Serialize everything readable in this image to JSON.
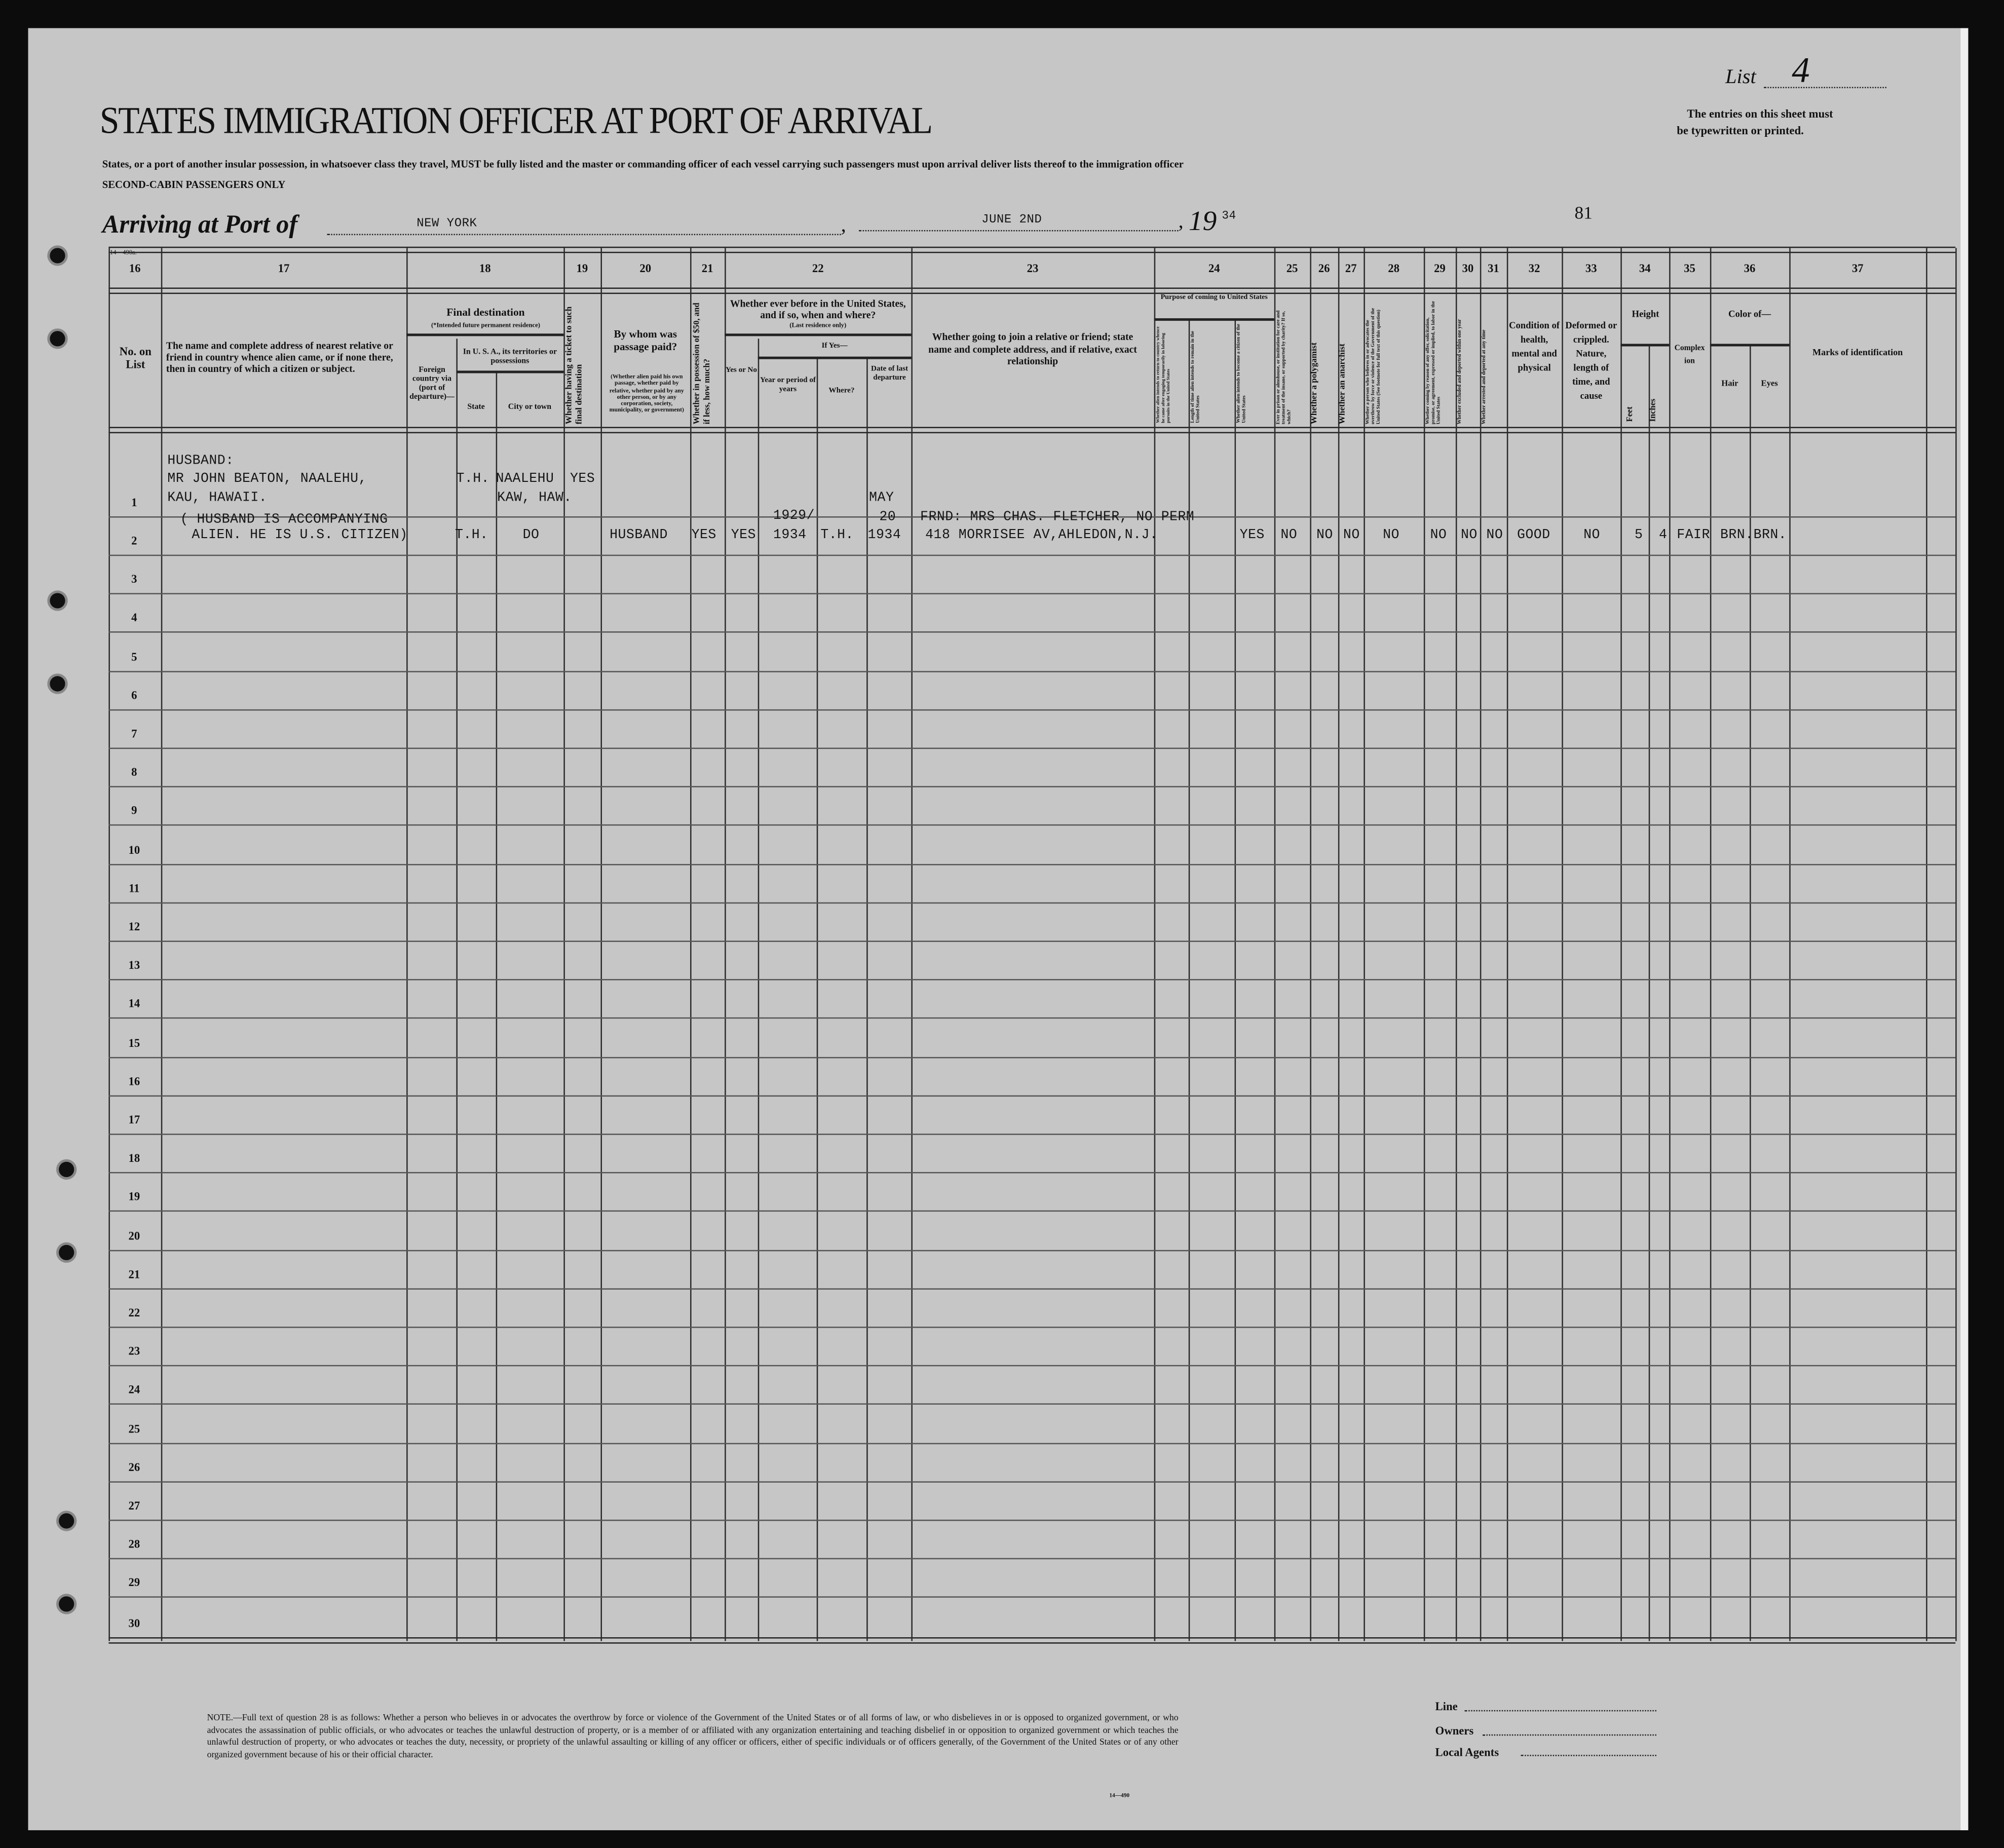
{
  "header": {
    "form_code": "14—490a.",
    "title": "STATES IMMIGRATION OFFICER AT PORT OF ARRIVAL",
    "instruction": "States, or a port of another insular possession, in whatsoever class they travel, MUST be fully listed and the master or commanding officer of each vessel carrying such passengers must upon arrival deliver lists thereof to the immigration officer",
    "class_line": "SECOND-CABIN PASSENGERS ONLY",
    "list_label": "List",
    "list_number": "4",
    "entries_note_1": "The entries on this sheet must",
    "entries_note_2": "be typewritten or printed.",
    "arriving_label": "Arriving at Port of",
    "port": "NEW YORK",
    "date": "JUNE 2ND",
    "year_prefix": "19",
    "year_suffix": "34",
    "sheet_number": "81"
  },
  "columns": {
    "numbers": [
      "16",
      "17",
      "18",
      "19",
      "20",
      "21",
      "22",
      "23",
      "24",
      "25",
      "26",
      "27",
      "28",
      "29",
      "30",
      "31",
      "32",
      "33",
      "34",
      "35",
      "36",
      "37"
    ],
    "c16": "No. on List",
    "c17": "The name and complete address of nearest relative or friend in country whence alien came, or if none there, then in country of which a citizen or subject.",
    "c18_title": "Final destination",
    "c18_sub": "(*Intended future permanent residence)",
    "c18_foreign": "Foreign country via (port of departure)—",
    "c18_usa": "In U. S. A., its territories or possessions",
    "c18_state": "State",
    "c18_city": "City or town",
    "c19": "Whether having a ticket to such final destination",
    "c20_title": "By whom was passage paid?",
    "c20_sub": "(Whether alien paid his own passage, whether paid by relative, whether paid by any other person, or by any corporation, society, municipality, or government)",
    "c21": "Whether in possession of $50, and if less, how much?",
    "c22_title": "Whether ever before in the United States, and if so, when and where?",
    "c22_sub": "(Last residence only)",
    "c22_yesno": "Yes or No",
    "c22_ifyes": "If Yes—",
    "c22_year": "Year or period of years",
    "c22_where": "Where?",
    "c22_date": "Date of last departure",
    "c23": "Whether going to join a relative or friend; state name and complete address, and if relative, exact relationship",
    "c24_title": "Purpose of coming to United States",
    "c24_a": "Whether alien intends to return to country whence he came after engaging temporarily in laboring pursuits in the United States",
    "c24_b": "Length of time alien intends to remain in the United States",
    "c24_c": "Whether alien intends to become a citizen of the United States",
    "c25": "Ever in prison or almshouse, or institution for care and treatment of the insane, or supported by charity? If so, which?",
    "c26": "Whether a polygamist",
    "c27": "Whether an anarchist",
    "c28": "Whether a person who believes in or advocates the overthrow by force or violence of the Government of the United States (See footnote for full text of this question)",
    "c29": "Whether coming by reason of any offer, solicitation, promise, or agreement, expressed or implied, to labor in the United States",
    "c30": "Whether excluded and deported within one year",
    "c31": "Whether arrested and deported at any time",
    "c32": "Condition of health, mental and physical",
    "c33": "Deformed or crippled. Nature, length of time, and cause",
    "c34_title": "Height",
    "c34_feet": "Feet",
    "c34_inches": "Inches",
    "c35": "Complexion",
    "c36_title": "Color of—",
    "c36_hair": "Hair",
    "c36_eyes": "Eyes",
    "c37": "Marks of identification"
  },
  "line_numbers": [
    "1",
    "2",
    "3",
    "4",
    "5",
    "6",
    "7",
    "8",
    "9",
    "10",
    "11",
    "12",
    "13",
    "14",
    "15",
    "16",
    "17",
    "18",
    "19",
    "20",
    "21",
    "22",
    "23",
    "24",
    "25",
    "26",
    "27",
    "28",
    "29",
    "30"
  ],
  "entries": {
    "row1": {
      "relative_line1": "HUSBAND:",
      "relative_line2": "MR JOHN BEATON, NAALEHU,",
      "relative_line3": "KAU, HAWAII.",
      "state": "T.H.",
      "city_line1": "NAALEHU",
      "city_line2": "KAW, HAW.",
      "ticket": "YES"
    },
    "row2": {
      "relative_line1": "( HUSBAND IS ACCOMPANYING",
      "relative_line2": "ALIEN. HE IS U.S. CITIZEN)",
      "state": "T.H.",
      "city": "DO",
      "passage_paid_by": "HUSBAND",
      "has_50": "YES",
      "ever_before": "YES",
      "years_line1": "1929/",
      "years_line2": "1934",
      "where": "T.H.",
      "departure_line1": "MAY",
      "departure_line2": "20",
      "departure_line3": "1934",
      "joining_line1": "FRND: MRS CHAS. FLETCHER, NO PERM",
      "joining_line2": "418 MORRISEE AV,AHLEDON,N.J.",
      "purpose_citizen": "YES",
      "c25": "NO",
      "c26": "NO",
      "c27": "NO",
      "c28": "NO",
      "c29": "NO",
      "c30": "NO",
      "c31": "NO",
      "health": "GOOD",
      "deformed": "NO",
      "feet": "5",
      "inches": "4",
      "complexion": "FAIR",
      "hair_eyes": "BRN.BRN."
    }
  },
  "footer": {
    "note": "NOTE.—Full text of question 28 is as follows: Whether a person who believes in or advocates the overthrow by force or violence of the Government of the United States or of all forms of law, or who disbelieves in or is opposed to organized government, or who advocates the assassination of public officials, or who advocates or teaches the unlawful destruction of property, or is a member of or affiliated with any organization entertaining and teaching disbelief in or opposition to organized government or which teaches the unlawful destruction of property, or who advocates or teaches the duty, necessity, or propriety of the unlawful assaulting or killing of any officer or officers, either of specific individuals or of officers generally, of the Government of the United States or of any other organized government because of his or their official character.",
    "form_code": "14—490",
    "line_label": "Line",
    "owners_label": "Owners",
    "agents_label": "Local Agents"
  }
}
